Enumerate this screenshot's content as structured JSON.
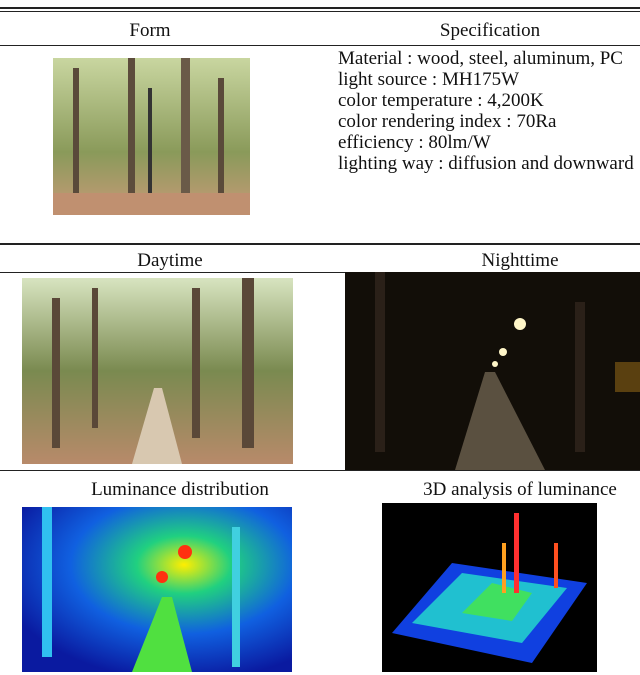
{
  "table": {
    "header": [
      "Form",
      "Specification"
    ],
    "specification": [
      "Material : wood, steel, aluminum, PC",
      "light source : MH175W",
      "color temperature : 4,200K",
      "color rendering index : 70Ra",
      "efficiency : 80lm/W",
      "lighting way : diffusion and downward"
    ],
    "row2_header": [
      "Daytime",
      "Nighttime"
    ],
    "row3_header": [
      "Luminance distribution",
      "3D analysis of luminance"
    ]
  }
}
